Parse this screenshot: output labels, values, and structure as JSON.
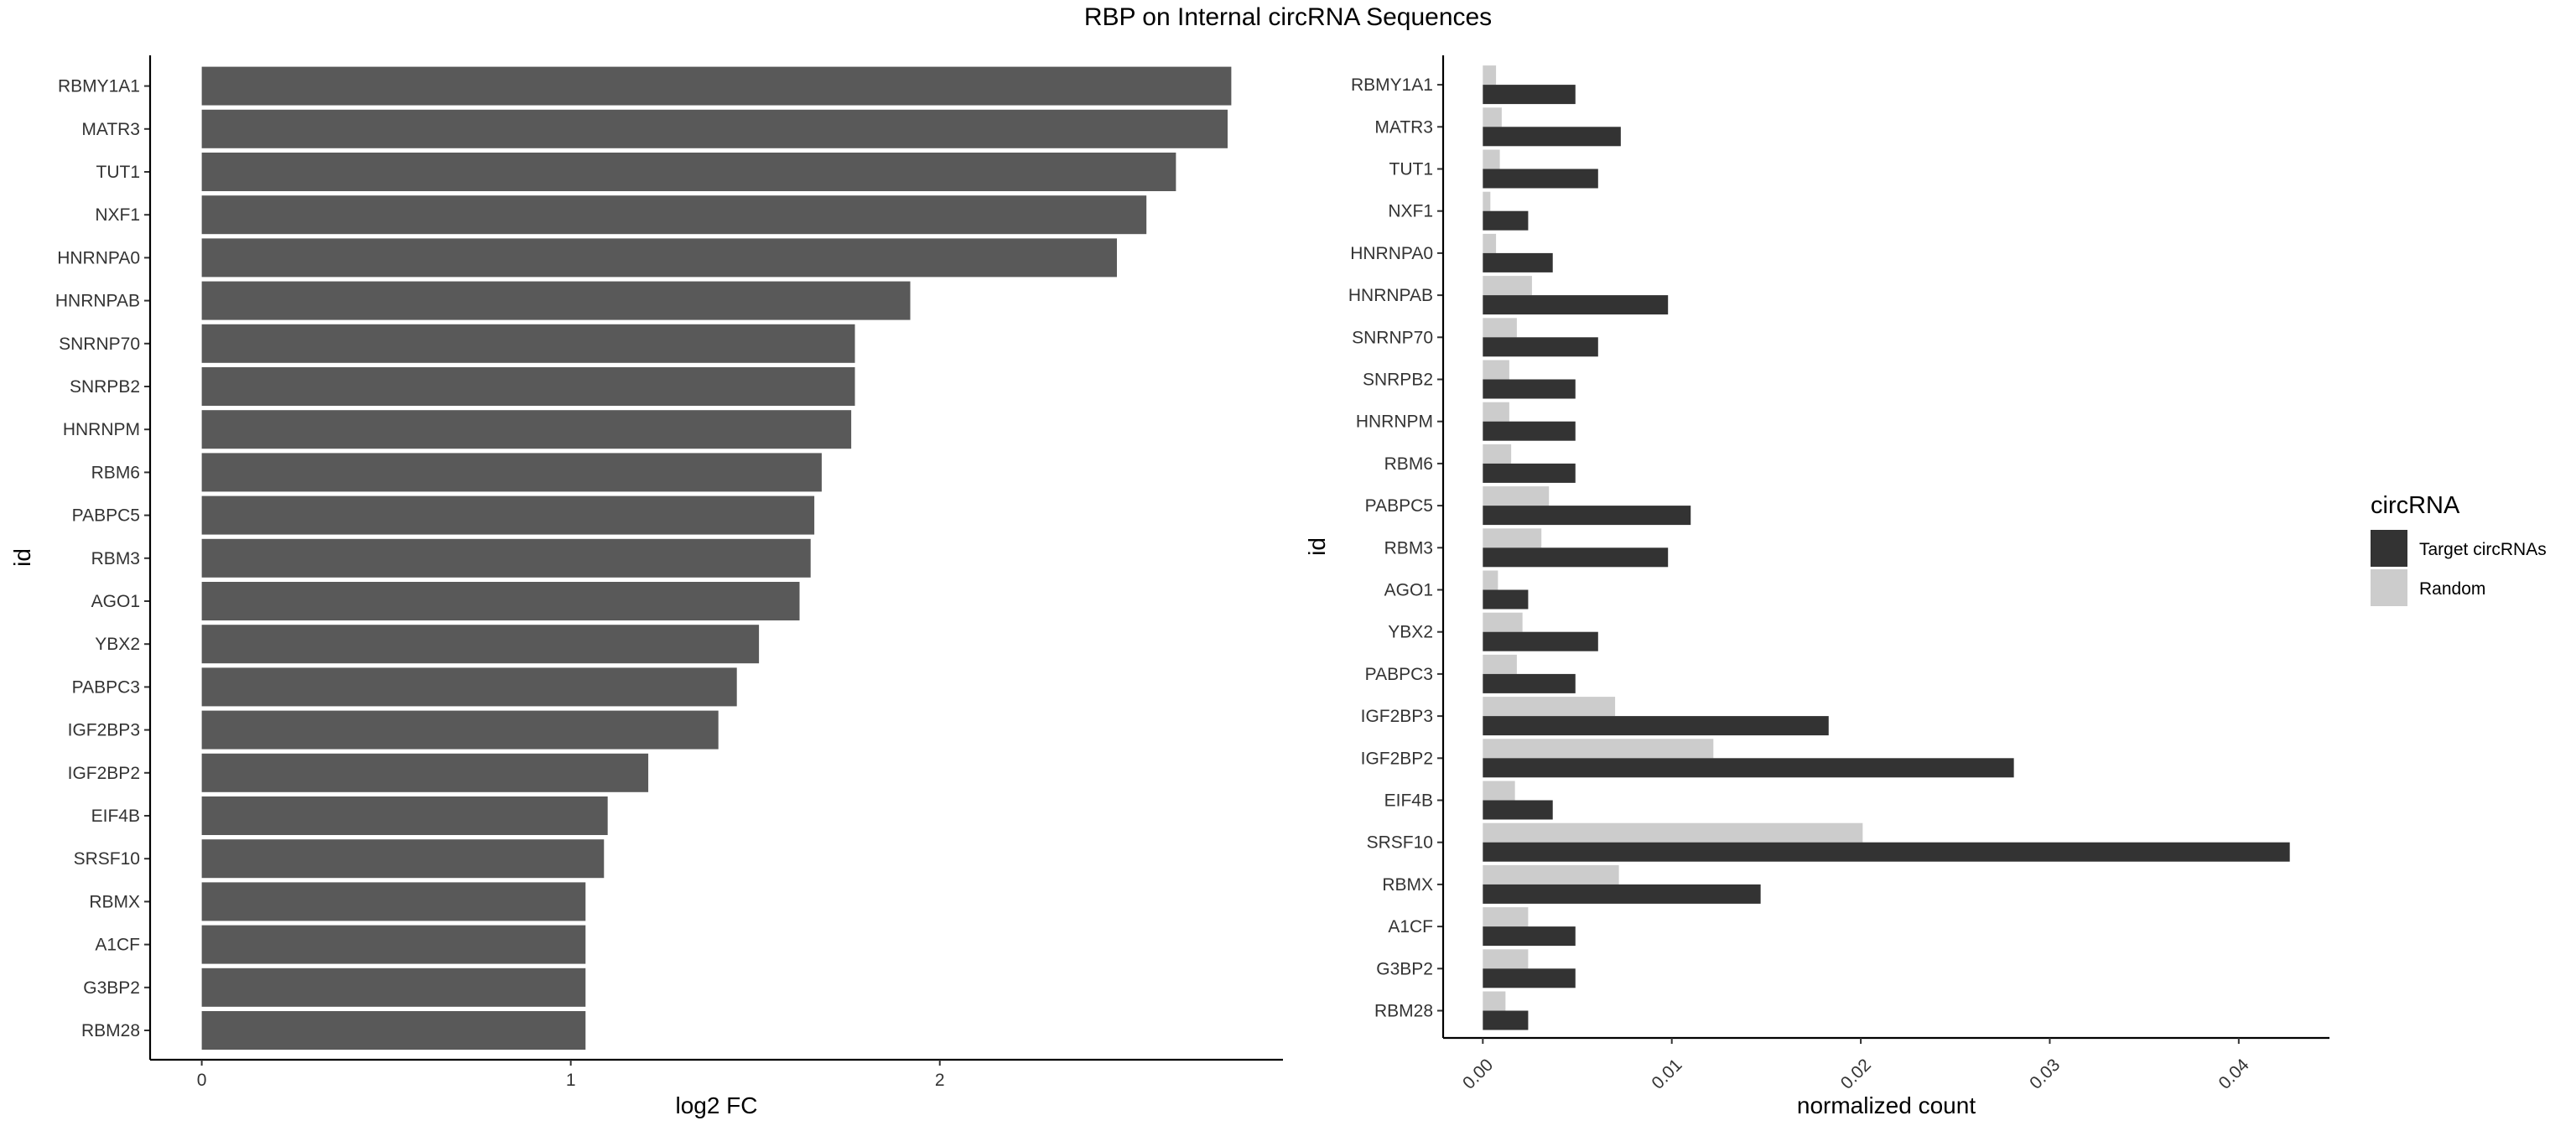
{
  "title": "RBP on Internal circRNA Sequences",
  "chart_data": [
    {
      "type": "bar",
      "orientation": "horizontal",
      "categories": [
        "RBMY1A1",
        "MATR3",
        "TUT1",
        "NXF1",
        "HNRNPA0",
        "HNRNPAB",
        "SNRNP70",
        "SNRPB2",
        "HNRNPM",
        "RBM6",
        "PABPC5",
        "RBM3",
        "AGO1",
        "YBX2",
        "PABPC3",
        "IGF2BP3",
        "IGF2BP2",
        "EIF4B",
        "SRSF10",
        "RBMX",
        "A1CF",
        "G3BP2",
        "RBM28"
      ],
      "values": [
        2.79,
        2.78,
        2.64,
        2.56,
        2.48,
        1.92,
        1.77,
        1.77,
        1.76,
        1.68,
        1.66,
        1.65,
        1.62,
        1.51,
        1.45,
        1.4,
        1.21,
        1.1,
        1.09,
        1.04,
        1.04,
        1.04,
        1.04
      ],
      "xlabel": "log2 FC",
      "ylabel": "id",
      "xticks": [
        "0",
        "1",
        "2"
      ],
      "xlim": [
        -0.14,
        2.93
      ],
      "bar_color": "#595959",
      "grid": false
    },
    {
      "type": "bar",
      "orientation": "horizontal",
      "categories": [
        "RBMY1A1",
        "MATR3",
        "TUT1",
        "NXF1",
        "HNRNPA0",
        "HNRNPAB",
        "SNRNP70",
        "SNRPB2",
        "HNRNPM",
        "RBM6",
        "PABPC5",
        "RBM3",
        "AGO1",
        "YBX2",
        "PABPC3",
        "IGF2BP3",
        "IGF2BP2",
        "EIF4B",
        "SRSF10",
        "RBMX",
        "A1CF",
        "G3BP2",
        "RBM28"
      ],
      "series": [
        {
          "name": "Target circRNAs",
          "color": "#333333",
          "values": [
            0.0049,
            0.0073,
            0.0061,
            0.0024,
            0.0037,
            0.0098,
            0.0061,
            0.0049,
            0.0049,
            0.0049,
            0.011,
            0.0098,
            0.0024,
            0.0061,
            0.0049,
            0.0183,
            0.0281,
            0.0037,
            0.0427,
            0.0147,
            0.0049,
            0.0049,
            0.0024
          ]
        },
        {
          "name": "Random",
          "color": "#cccccc",
          "values": [
            0.0007,
            0.001,
            0.0009,
            0.0004,
            0.0007,
            0.0026,
            0.0018,
            0.0014,
            0.0014,
            0.0015,
            0.0035,
            0.0031,
            0.0008,
            0.0021,
            0.0018,
            0.007,
            0.0122,
            0.0017,
            0.0201,
            0.0072,
            0.0024,
            0.0024,
            0.0012
          ]
        }
      ],
      "xlabel": "normalized count",
      "ylabel": "id",
      "xticks": [
        0.0,
        0.01,
        0.02,
        0.03,
        0.04
      ],
      "xtick_labels": [
        "0.00",
        "0.01",
        "0.02",
        "0.03",
        "0.04"
      ],
      "xlim": [
        -0.0021,
        0.0448
      ],
      "legend": {
        "title": "circRNA",
        "position": "right"
      },
      "grid": false
    }
  ]
}
